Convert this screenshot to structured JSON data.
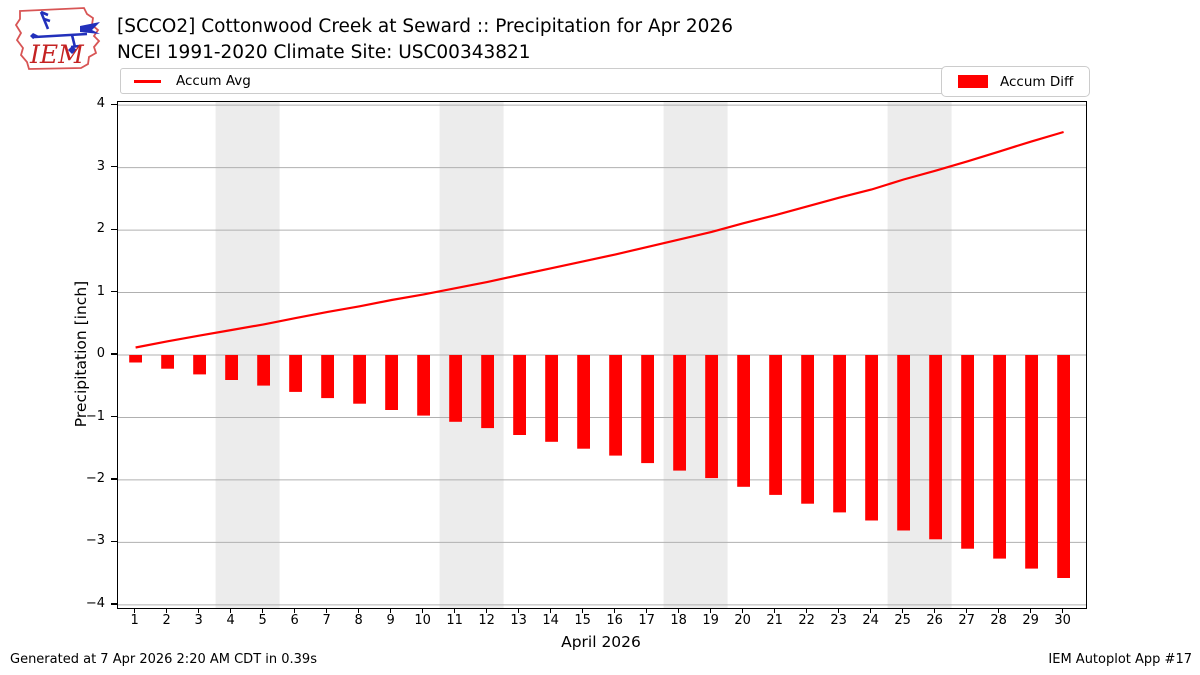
{
  "header": {
    "title": "[SCCO2] Cottonwood Creek at Seward :: Precipitation for Apr 2026",
    "subtitle": "NCEI 1991-2020 Climate Site: USC00343821",
    "logo_text": "IEM"
  },
  "legend": {
    "avg_label": "Accum Avg",
    "diff_label": "Accum Diff"
  },
  "axes": {
    "xlabel": "April 2026",
    "ylabel": "Precipitation [inch]"
  },
  "footer": {
    "left": "Generated at 7 Apr 2026 2:20 AM CDT in 0.39s",
    "right": "IEM Autoplot App #17"
  },
  "colors": {
    "series_red": "#ff0000",
    "grid": "#b0b0b0",
    "weekend_band": "#ececec",
    "logo_outline_red": "#d85555",
    "logo_text_red": "#c42222",
    "logo_blue": "#2230bb"
  },
  "chart_data": {
    "type": "combo-line-bar",
    "title": "[SCCO2] Cottonwood Creek at Seward :: Precipitation for Apr 2026",
    "xlabel": "April 2026",
    "ylabel": "Precipitation [inch]",
    "x": [
      1,
      2,
      3,
      4,
      5,
      6,
      7,
      8,
      9,
      10,
      11,
      12,
      13,
      14,
      15,
      16,
      17,
      18,
      19,
      20,
      21,
      22,
      23,
      24,
      25,
      26,
      27,
      28,
      29,
      30
    ],
    "series": [
      {
        "name": "Accum Avg",
        "type": "line",
        "color": "#ff0000",
        "values": [
          0.12,
          0.22,
          0.31,
          0.4,
          0.49,
          0.59,
          0.69,
          0.78,
          0.88,
          0.97,
          1.07,
          1.17,
          1.28,
          1.39,
          1.5,
          1.61,
          1.73,
          1.85,
          1.97,
          2.11,
          2.24,
          2.38,
          2.52,
          2.65,
          2.81,
          2.95,
          3.1,
          3.26,
          3.42,
          3.57
        ]
      },
      {
        "name": "Accum Diff",
        "type": "bar",
        "color": "#ff0000",
        "values": [
          -0.12,
          -0.22,
          -0.31,
          -0.4,
          -0.49,
          -0.59,
          -0.69,
          -0.78,
          -0.88,
          -0.97,
          -1.07,
          -1.17,
          -1.28,
          -1.39,
          -1.5,
          -1.61,
          -1.73,
          -1.85,
          -1.97,
          -2.11,
          -2.24,
          -2.38,
          -2.52,
          -2.65,
          -2.81,
          -2.95,
          -3.1,
          -3.26,
          -3.42,
          -3.57
        ]
      }
    ],
    "xlim": [
      0.45,
      30.7
    ],
    "ylim": [
      -4.05,
      4.05
    ],
    "yticks": [
      {
        "v": 4,
        "label": "4"
      },
      {
        "v": 3,
        "label": "3"
      },
      {
        "v": 2,
        "label": "2"
      },
      {
        "v": 1,
        "label": "1"
      },
      {
        "v": 0,
        "label": "0"
      },
      {
        "v": -1,
        "label": "−1"
      },
      {
        "v": -2,
        "label": "−2"
      },
      {
        "v": -3,
        "label": "−3"
      },
      {
        "v": -4,
        "label": "−4"
      }
    ],
    "xticks": [
      {
        "v": 1,
        "label": "1"
      },
      {
        "v": 2,
        "label": "2"
      },
      {
        "v": 3,
        "label": "3"
      },
      {
        "v": 4,
        "label": "4"
      },
      {
        "v": 5,
        "label": "5"
      },
      {
        "v": 6,
        "label": "6"
      },
      {
        "v": 7,
        "label": "7"
      },
      {
        "v": 8,
        "label": "8"
      },
      {
        "v": 9,
        "label": "9"
      },
      {
        "v": 10,
        "label": "10"
      },
      {
        "v": 11,
        "label": "11"
      },
      {
        "v": 12,
        "label": "12"
      },
      {
        "v": 13,
        "label": "13"
      },
      {
        "v": 14,
        "label": "14"
      },
      {
        "v": 15,
        "label": "15"
      },
      {
        "v": 16,
        "label": "16"
      },
      {
        "v": 17,
        "label": "17"
      },
      {
        "v": 18,
        "label": "18"
      },
      {
        "v": 19,
        "label": "19"
      },
      {
        "v": 20,
        "label": "20"
      },
      {
        "v": 21,
        "label": "21"
      },
      {
        "v": 22,
        "label": "22"
      },
      {
        "v": 23,
        "label": "23"
      },
      {
        "v": 24,
        "label": "24"
      },
      {
        "v": 25,
        "label": "25"
      },
      {
        "v": 26,
        "label": "26"
      },
      {
        "v": 27,
        "label": "27"
      },
      {
        "v": 28,
        "label": "28"
      },
      {
        "v": 29,
        "label": "29"
      },
      {
        "v": 30,
        "label": "30"
      }
    ],
    "grid": "horizontal",
    "weekend_bands": [
      [
        3.5,
        5.5
      ],
      [
        10.5,
        12.5
      ],
      [
        17.5,
        19.5
      ],
      [
        24.5,
        26.5
      ]
    ],
    "legend_position": "top",
    "bar_width_days": 0.4
  }
}
